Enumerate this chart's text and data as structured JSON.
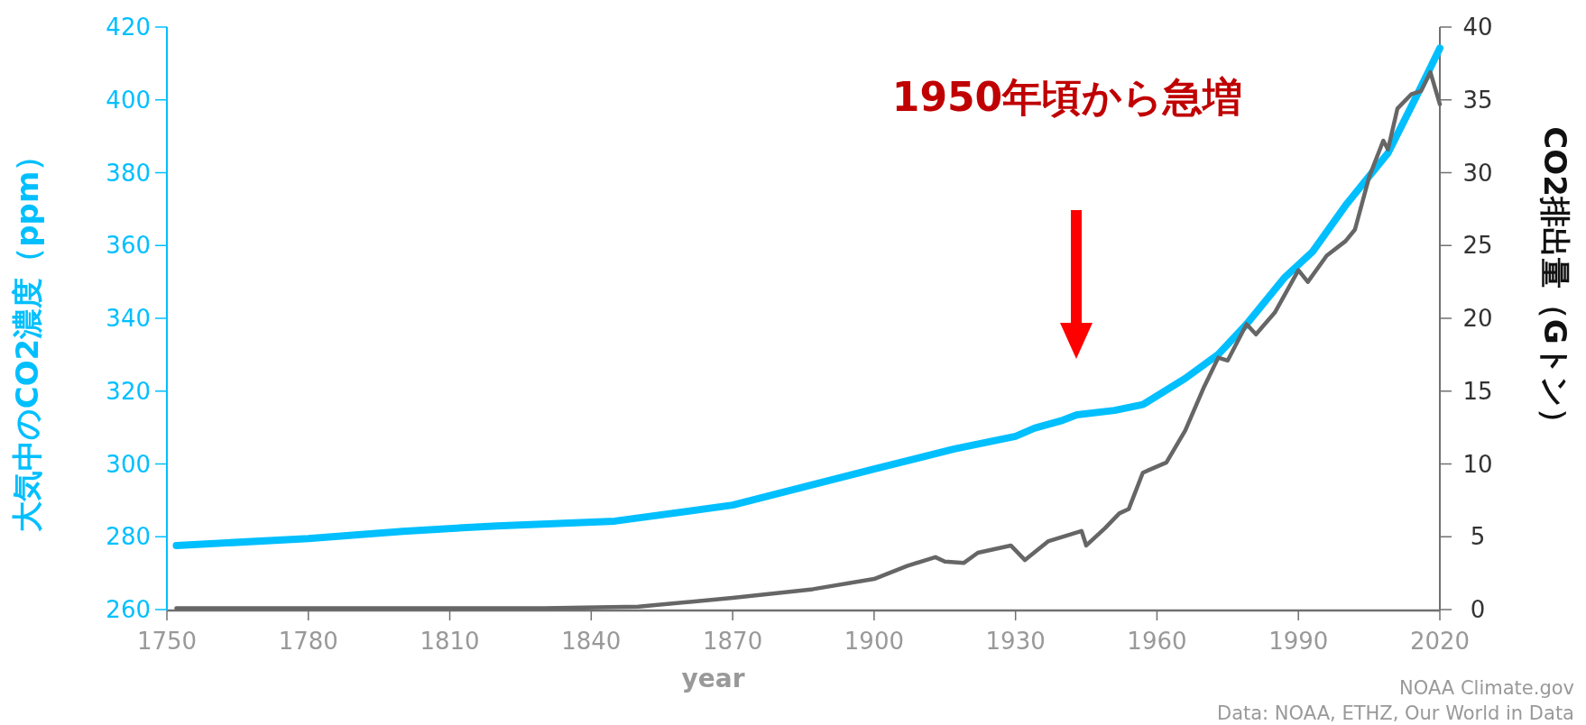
{
  "chart_data": {
    "type": "line",
    "xlabel": "year",
    "ylabel": "大気中のCO2濃度（ppm）",
    "y2label": "CO2排出量（Gトン）",
    "xlim": [
      1750,
      2020
    ],
    "xticks": [
      1750,
      1780,
      1810,
      1840,
      1870,
      1900,
      1930,
      1960,
      1990,
      2020
    ],
    "ylim": [
      260,
      420
    ],
    "yticks": [
      260,
      280,
      300,
      320,
      340,
      360,
      380,
      400,
      420
    ],
    "y2lim": [
      0,
      40
    ],
    "y2ticks": [
      0,
      5,
      10,
      15,
      20,
      25,
      30,
      35,
      40
    ],
    "grid": false,
    "line_style": "solid",
    "series": [
      {
        "color": "#00bfff",
        "x": [
          1752,
          1780,
          1800,
          1820,
          1845,
          1870,
          1900,
          1917,
          1930,
          1934,
          1940,
          1943,
          1951,
          1957,
          1966,
          1973,
          1979,
          1987,
          1993,
          2000,
          2009,
          2015,
          2020
        ],
        "values": [
          277.6,
          279.5,
          281.5,
          283,
          284.3,
          288.7,
          298.6,
          304.1,
          307.6,
          309.8,
          312,
          313.5,
          314.7,
          316.3,
          323.5,
          330.1,
          338.4,
          351.1,
          358.3,
          371,
          385.4,
          400.9,
          414.2
        ]
      },
      {
        "color": "#666666",
        "axis": "y2",
        "x": [
          1752,
          1800,
          1830,
          1850,
          1870,
          1887,
          1900,
          1907,
          1913,
          1915,
          1919,
          1922,
          1929,
          1932,
          1937,
          1944,
          1945,
          1949,
          1952,
          1954,
          1957,
          1962,
          1966,
          1970,
          1973,
          1975,
          1979,
          1981,
          1985,
          1990,
          1992,
          1996,
          2000,
          2002,
          2005,
          2008,
          2009,
          2011,
          2014,
          2016,
          2018,
          2020
        ],
        "values": [
          0.1,
          0.1,
          0.1,
          0.2,
          0.8,
          1.4,
          2.1,
          3.0,
          3.6,
          3.3,
          3.2,
          3.9,
          4.4,
          3.4,
          4.7,
          5.4,
          4.4,
          5.6,
          6.6,
          6.9,
          9.4,
          10.1,
          12.3,
          15.3,
          17.3,
          17.1,
          19.6,
          18.9,
          20.4,
          23.3,
          22.5,
          24.3,
          25.3,
          26.1,
          29.7,
          32.2,
          31.6,
          34.4,
          35.4,
          35.6,
          36.9,
          34.7
        ]
      }
    ],
    "annotations": [
      "1950年頃から急増",
      "NOAA Climate.gov",
      "Data: NOAA, ETHZ, Our World in Data"
    ]
  }
}
